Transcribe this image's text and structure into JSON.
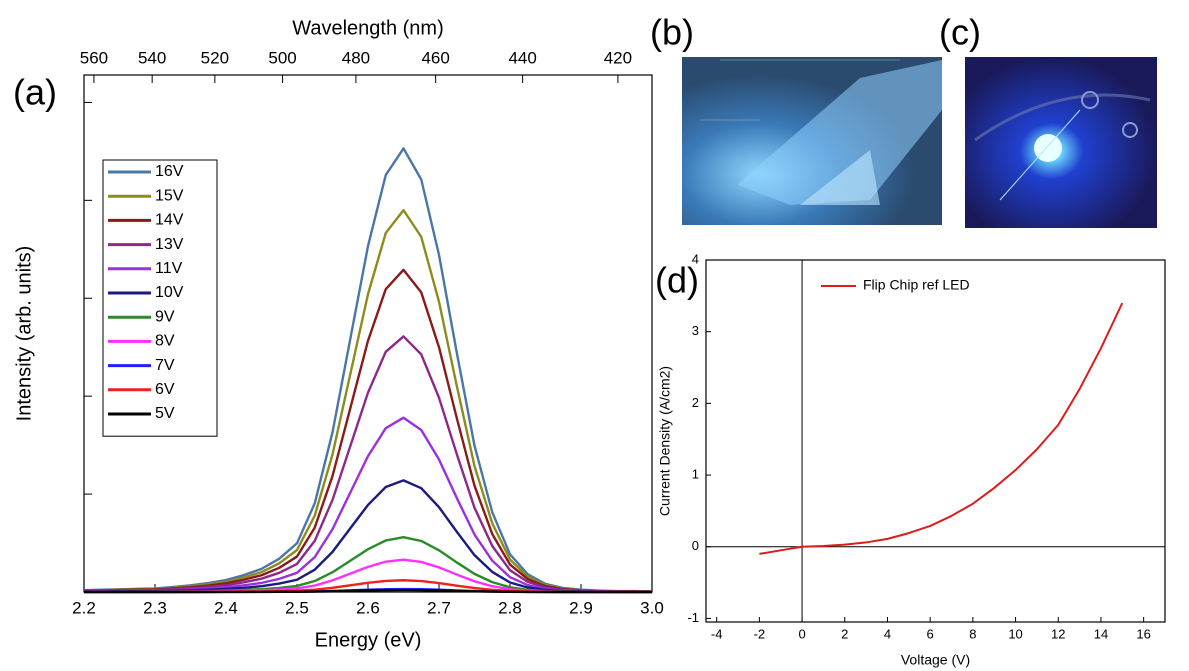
{
  "panel_labels": [
    "(a)",
    "(b)",
    "(c)",
    "(d)"
  ],
  "chart_data": [
    {
      "type": "line",
      "xlabel": "Energy (eV)",
      "ylabel": "Intensity (arb. units)",
      "x2label": "Wavelength (nm)",
      "x2ticks": [
        560,
        540,
        520,
        500,
        480,
        460,
        440,
        420
      ],
      "xlim": [
        2.2,
        3.0
      ],
      "xticks": [
        2.2,
        2.3,
        2.4,
        2.5,
        2.6,
        2.7,
        2.8,
        2.9,
        {
          "value": 3,
          "label": "3.0"
        }
      ],
      "ylim": [
        0,
        5.28
      ],
      "yticks": [
        0,
        1,
        2,
        3,
        4,
        5
      ],
      "legend": "upper left",
      "x": [
        2.2,
        2.225,
        2.25,
        2.275,
        2.3,
        2.325,
        2.35,
        2.375,
        2.4,
        2.425,
        2.45,
        2.475,
        2.5,
        2.525,
        2.55,
        2.575,
        2.6,
        2.625,
        2.65,
        2.675,
        2.7,
        2.725,
        2.75,
        2.775,
        2.8,
        2.825,
        2.85,
        2.875,
        2.9,
        2.925,
        2.95,
        2.975,
        3.0
      ],
      "series": [
        {
          "name": "16V",
          "color": "#4a76a8",
          "values": [
            0.018,
            0.023,
            0.027,
            0.032,
            0.036,
            0.05,
            0.068,
            0.091,
            0.122,
            0.172,
            0.236,
            0.34,
            0.498,
            0.906,
            1.631,
            2.582,
            3.533,
            4.258,
            4.53,
            4.213,
            3.443,
            2.446,
            1.495,
            0.815,
            0.385,
            0.181,
            0.082,
            0.041,
            0.023,
            0.014,
            0.009,
            0.009,
            0.005
          ]
        },
        {
          "name": "15V",
          "color": "#8c8c1e",
          "values": [
            0.016,
            0.02,
            0.023,
            0.027,
            0.031,
            0.043,
            0.059,
            0.078,
            0.105,
            0.148,
            0.203,
            0.293,
            0.429,
            0.78,
            1.404,
            2.223,
            3.042,
            3.666,
            3.9,
            3.627,
            2.964,
            2.106,
            1.287,
            0.702,
            0.332,
            0.156,
            0.07,
            0.035,
            0.02,
            0.012,
            0.008,
            0.008,
            0.004
          ]
        },
        {
          "name": "14V",
          "color": "#8b1a1a",
          "values": [
            0.013,
            0.016,
            0.02,
            0.023,
            0.026,
            0.036,
            0.049,
            0.066,
            0.089,
            0.125,
            0.171,
            0.247,
            0.362,
            0.658,
            1.184,
            1.875,
            2.566,
            3.093,
            3.29,
            3.06,
            2.5,
            1.777,
            1.086,
            0.592,
            0.28,
            0.132,
            0.059,
            0.03,
            0.016,
            0.01,
            0.007,
            0.007,
            0.003
          ]
        },
        {
          "name": "13V",
          "color": "#8b2a8b",
          "values": [
            0.01,
            0.013,
            0.016,
            0.018,
            0.021,
            0.029,
            0.039,
            0.052,
            0.07,
            0.099,
            0.136,
            0.196,
            0.287,
            0.522,
            0.94,
            1.488,
            2.036,
            2.453,
            2.61,
            2.427,
            1.984,
            1.409,
            0.861,
            0.47,
            0.222,
            0.104,
            0.047,
            0.023,
            0.013,
            0.008,
            0.005,
            0.005,
            0.003
          ]
        },
        {
          "name": "11V",
          "color": "#9b30e0",
          "values": [
            0.007,
            0.009,
            0.011,
            0.012,
            0.014,
            0.02,
            0.027,
            0.036,
            0.048,
            0.068,
            0.093,
            0.134,
            0.196,
            0.356,
            0.641,
            1.015,
            1.388,
            1.673,
            1.78,
            1.655,
            1.353,
            0.961,
            0.587,
            0.32,
            0.151,
            0.071,
            0.032,
            0.016,
            0.009,
            0.005,
            0.004,
            0.004,
            0.002
          ]
        },
        {
          "name": "10V",
          "color": "#1a1a80",
          "values": [
            0.005,
            0.006,
            0.007,
            0.008,
            0.009,
            0.013,
            0.017,
            0.023,
            0.031,
            0.043,
            0.059,
            0.086,
            0.125,
            0.228,
            0.41,
            0.65,
            0.889,
            1.072,
            1.14,
            1.06,
            0.866,
            0.616,
            0.376,
            0.205,
            0.097,
            0.046,
            0.021,
            0.01,
            0.006,
            0.003,
            0.002,
            0.002,
            0.001
          ]
        },
        {
          "name": "9V",
          "color": "#2a8a2a",
          "values": [
            0.002,
            0.003,
            0.003,
            0.004,
            0.004,
            0.006,
            0.008,
            0.011,
            0.015,
            0.021,
            0.029,
            0.042,
            0.062,
            0.112,
            0.202,
            0.319,
            0.437,
            0.526,
            0.56,
            0.521,
            0.426,
            0.302,
            0.185,
            0.101,
            0.048,
            0.022,
            0.01,
            0.005,
            0.003,
            0.002,
            0.001,
            0.001,
            0.001
          ]
        },
        {
          "name": "8V",
          "color": "#ff30ff",
          "values": [
            0.001,
            0.002,
            0.002,
            0.002,
            0.003,
            0.004,
            0.005,
            0.007,
            0.009,
            0.013,
            0.017,
            0.025,
            0.036,
            0.066,
            0.119,
            0.188,
            0.257,
            0.31,
            0.33,
            0.307,
            0.251,
            0.178,
            0.109,
            0.059,
            0.028,
            0.013,
            0.006,
            0.003,
            0.002,
            0.001,
            0.001,
            0.001,
            0
          ]
        },
        {
          "name": "7V",
          "color": "#2020ff",
          "values": [
            0,
            0,
            0,
            0,
            0,
            0,
            0,
            0.001,
            0.001,
            0.001,
            0.002,
            0.002,
            0.003,
            0.006,
            0.011,
            0.017,
            0.023,
            0.028,
            0.03,
            0.028,
            0.023,
            0.016,
            0.01,
            0.005,
            0.003,
            0.001,
            0.001,
            0,
            0,
            0,
            0,
            0,
            0
          ]
        },
        {
          "name": "6V",
          "color": "#ee2020",
          "values": [
            0,
            0.001,
            0.001,
            0.001,
            0.001,
            0.001,
            0.002,
            0.002,
            0.003,
            0.005,
            0.006,
            0.009,
            0.013,
            0.024,
            0.043,
            0.068,
            0.094,
            0.113,
            0.12,
            0.112,
            0.091,
            0.065,
            0.04,
            0.022,
            0.01,
            0.005,
            0.002,
            0.001,
            0.001,
            0,
            0,
            0,
            0
          ]
        },
        {
          "name": "5V",
          "color": "#000000",
          "values": [
            0,
            0,
            0,
            0,
            0,
            0,
            0,
            0,
            0.001,
            0.001,
            0.001,
            0.002,
            0.002,
            0.004,
            0.007,
            0.011,
            0.016,
            0.019,
            0.02,
            0.019,
            0.015,
            0.011,
            0.007,
            0.004,
            0.002,
            0.001,
            0,
            0,
            0,
            0,
            0,
            0,
            0
          ]
        }
      ]
    },
    {
      "type": "line",
      "xlabel": "Voltage (V)",
      "ylabel": "Current Density (A/cm2)",
      "xlim": [
        -4.5,
        17
      ],
      "xticks": [
        -4,
        -2,
        0,
        2,
        4,
        6,
        8,
        10,
        12,
        14,
        16
      ],
      "ylim": [
        -1.05,
        4
      ],
      "yticks": [
        -1,
        0,
        1,
        2,
        3,
        4
      ],
      "legend": "upper left",
      "zero_lines": true,
      "x": [
        -2,
        -1,
        0,
        1,
        2,
        3,
        4,
        5,
        6,
        7,
        8,
        9,
        10,
        11,
        12,
        13,
        14,
        15
      ],
      "series": [
        {
          "name": "Flip Chip ref LED",
          "color": "#dd1c1c",
          "values": [
            -0.1,
            -0.05,
            0,
            0.01,
            0.03,
            0.06,
            0.11,
            0.19,
            0.29,
            0.43,
            0.6,
            0.82,
            1.07,
            1.36,
            1.7,
            2.2,
            2.77,
            3.4
          ]
        }
      ]
    }
  ]
}
